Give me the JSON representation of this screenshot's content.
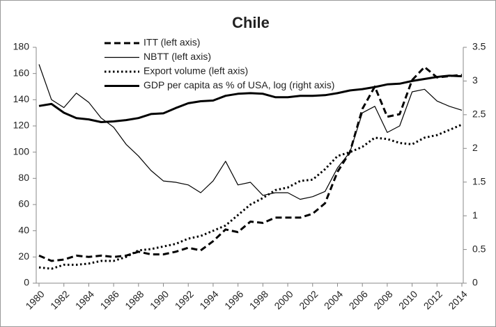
{
  "chart_data": {
    "type": "line",
    "title": "Chile",
    "x": [
      1980,
      1981,
      1982,
      1983,
      1984,
      1985,
      1986,
      1987,
      1988,
      1989,
      1990,
      1991,
      1992,
      1993,
      1994,
      1995,
      1996,
      1997,
      1998,
      1999,
      2000,
      2001,
      2002,
      2003,
      2004,
      2005,
      2006,
      2007,
      2008,
      2009,
      2010,
      2011,
      2012,
      2013,
      2014
    ],
    "xlim": [
      1980,
      2014
    ],
    "xticks": [
      1980,
      1982,
      1984,
      1986,
      1988,
      1990,
      1992,
      1994,
      1996,
      1998,
      2000,
      2002,
      2004,
      2006,
      2008,
      2010,
      2012,
      2014
    ],
    "ylim": [
      0,
      180
    ],
    "yticks": [
      0,
      20,
      40,
      60,
      80,
      100,
      120,
      140,
      160,
      180
    ],
    "y2lim": [
      0,
      3.5
    ],
    "y2ticks": [
      0,
      0.5,
      1,
      1.5,
      2,
      2.5,
      3,
      3.5
    ],
    "legend": "upper left",
    "series": [
      {
        "name": "ITT (left axis)",
        "color": "#000000",
        "dash": "dashed",
        "width": 3,
        "values": [
          21,
          17,
          18,
          21,
          20,
          21,
          20,
          21,
          24,
          22,
          22,
          24,
          27,
          25,
          32,
          41,
          39,
          47,
          46,
          50,
          50,
          50,
          53,
          61,
          85,
          100,
          133,
          150,
          127,
          129,
          155,
          165,
          157,
          158,
          159
        ]
      },
      {
        "name": "NBTT (left axis)",
        "color": "#000000",
        "dash": "solid",
        "width": 1.2,
        "values": [
          167,
          140,
          134,
          145,
          138,
          126,
          119,
          106,
          97,
          86,
          78,
          77,
          75,
          69,
          78,
          93,
          75,
          77,
          67,
          69,
          69,
          64,
          66,
          70,
          88,
          100,
          130,
          135,
          115,
          120,
          146,
          148,
          139,
          135,
          132
        ]
      },
      {
        "name": "Export volume (left axis)",
        "color": "#000000",
        "dash": "dotted",
        "width": 3,
        "values": [
          12,
          11,
          14,
          14,
          15,
          17,
          17,
          20,
          25,
          26,
          28,
          30,
          34,
          36,
          40,
          44,
          52,
          60,
          65,
          71,
          73,
          78,
          79,
          87,
          97,
          100,
          104,
          111,
          110,
          107,
          106,
          111,
          113,
          117,
          121
        ]
      },
      {
        "name": "GDP per capita as % of USA, log (right axis)",
        "color": "#000000",
        "dash": "solid",
        "width": 3,
        "axis": "y2",
        "values": [
          2.63,
          2.66,
          2.53,
          2.45,
          2.43,
          2.39,
          2.4,
          2.42,
          2.45,
          2.51,
          2.52,
          2.6,
          2.67,
          2.7,
          2.71,
          2.78,
          2.81,
          2.82,
          2.81,
          2.76,
          2.76,
          2.78,
          2.78,
          2.79,
          2.82,
          2.86,
          2.88,
          2.91,
          2.95,
          2.96,
          3.0,
          3.03,
          3.06,
          3.08,
          3.07
        ]
      }
    ]
  }
}
